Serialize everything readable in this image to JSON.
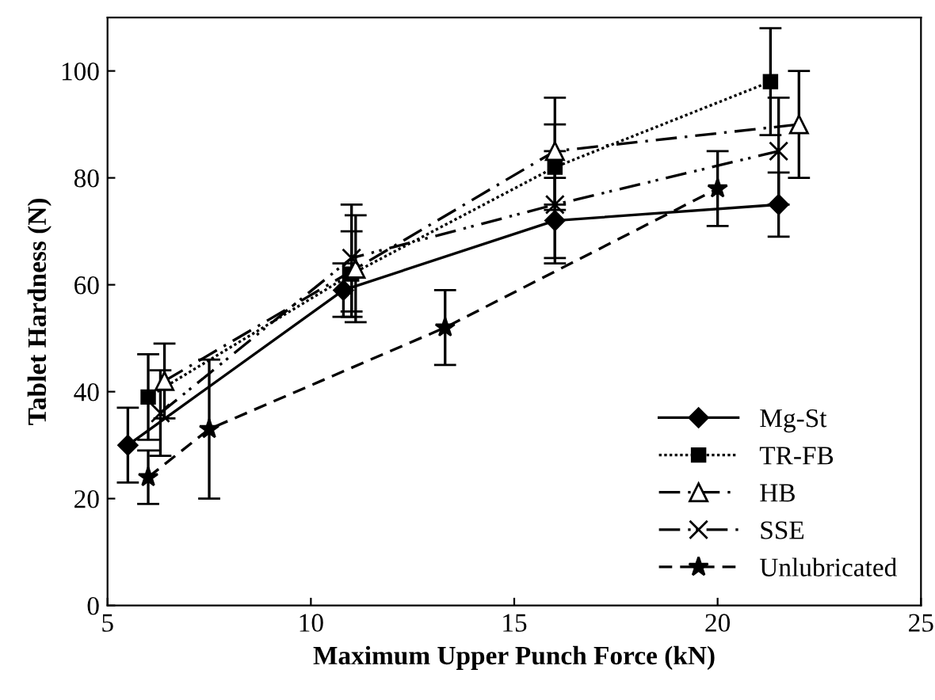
{
  "chart_data": {
    "type": "line",
    "xlabel": "Maximum Upper Punch Force (kN)",
    "ylabel": "Tablet Hardness (N)",
    "xlim": [
      5,
      25
    ],
    "xticks": [
      5,
      10,
      15,
      20,
      25
    ],
    "ylim": [
      0,
      110
    ],
    "yticks": [
      0,
      20,
      40,
      60,
      80,
      100
    ],
    "grid": false,
    "legend": "bottom right",
    "series": [
      {
        "name": "Mg-St",
        "color": "#000000",
        "marker": "diamond",
        "line_style": "solid",
        "x": [
          5.5,
          10.8,
          16,
          21.5
        ],
        "values": [
          30,
          59,
          72,
          75
        ],
        "errors": [
          7,
          5,
          8,
          6
        ]
      },
      {
        "name": "TR-FB",
        "color": "#000000",
        "marker": "square",
        "line_style": "dotted",
        "x": [
          6,
          11,
          16,
          21.3
        ],
        "values": [
          39,
          62,
          82,
          98
        ],
        "errors": [
          8,
          8,
          8,
          10
        ]
      },
      {
        "name": "HB",
        "color": "#000000",
        "marker": "triangle",
        "line_style": "dashdot",
        "x": [
          6.4,
          11.1,
          16,
          22
        ],
        "values": [
          42,
          63,
          85,
          90
        ],
        "errors": [
          7,
          10,
          10,
          10
        ]
      },
      {
        "name": "SSE",
        "color": "#000000",
        "marker": "cross",
        "line_style": "dashdotdot",
        "x": [
          6.3,
          11,
          16,
          21.5
        ],
        "values": [
          36,
          65,
          75,
          85
        ],
        "errors": [
          8,
          10,
          10,
          10
        ]
      },
      {
        "name": "Unlubricated",
        "color": "#000000",
        "marker": "star",
        "line_style": "dashed",
        "x": [
          6,
          7.5,
          13.3,
          20
        ],
        "values": [
          24,
          33,
          52,
          78
        ],
        "errors": [
          5,
          13,
          7,
          7
        ]
      }
    ]
  }
}
